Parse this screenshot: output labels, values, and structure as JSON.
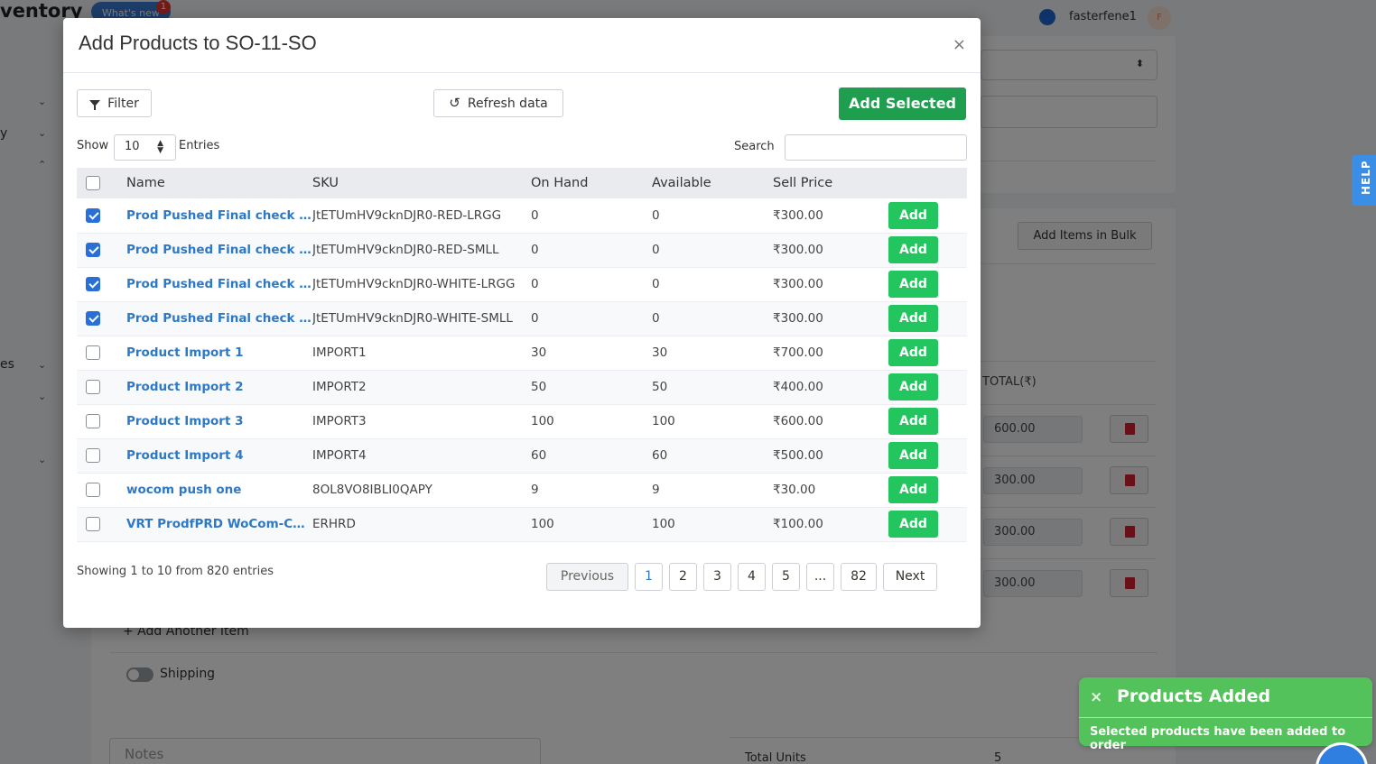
{
  "background": {
    "brand": "ventory",
    "whats_new": "What's new",
    "whats_new_badge": "1",
    "user_name": "fasterfene1",
    "avatar_initial": "F",
    "sidebar_fragments": [
      "y",
      "es"
    ],
    "add_items_bulk": "Add Items in Bulk",
    "total_header": "TOTAL(₹)",
    "amounts": [
      "600.00",
      "300.00",
      "300.00",
      "300.00"
    ],
    "add_another_item": "+ Add Another Item",
    "shipping_label": "Shipping",
    "notes_placeholder": "Notes",
    "total_units_label": "Total Units",
    "total_units_value": "5",
    "help": "HELP"
  },
  "modal": {
    "title": "Add Products to SO-11-SO",
    "close": "×",
    "filter_label": "Filter",
    "refresh_label": "Refresh data",
    "add_selected_label": "Add Selected",
    "show_label": "Show",
    "show_value": "10",
    "entries_label": "Entries",
    "search_label": "Search",
    "search_value": ""
  },
  "table": {
    "headers": {
      "name": "Name",
      "sku": "SKU",
      "on_hand": "On Hand",
      "available": "Available",
      "sell_price": "Sell Price"
    },
    "add_label": "Add",
    "rows": [
      {
        "checked": true,
        "name": "Prod Pushed Final check RED-LRGG",
        "sku": "JtETUmHV9cknDJR0-RED-LRGG",
        "on_hand": "0",
        "available": "0",
        "sell_price": "₹300.00"
      },
      {
        "checked": true,
        "name": "Prod Pushed Final check RED-SMLL",
        "sku": "JtETUmHV9cknDJR0-RED-SMLL",
        "on_hand": "0",
        "available": "0",
        "sell_price": "₹300.00"
      },
      {
        "checked": true,
        "name": "Prod Pushed Final check WHITE-LRGG",
        "sku": "JtETUmHV9cknDJR0-WHITE-LRGG",
        "on_hand": "0",
        "available": "0",
        "sell_price": "₹300.00"
      },
      {
        "checked": true,
        "name": "Prod Pushed Final check WHITE-SMLL",
        "sku": "JtETUmHV9cknDJR0-WHITE-SMLL",
        "on_hand": "0",
        "available": "0",
        "sell_price": "₹300.00"
      },
      {
        "checked": false,
        "name": "Product Import 1",
        "sku": "IMPORT1",
        "on_hand": "30",
        "available": "30",
        "sell_price": "₹700.00"
      },
      {
        "checked": false,
        "name": "Product Import 2",
        "sku": "IMPORT2",
        "on_hand": "50",
        "available": "50",
        "sell_price": "₹400.00"
      },
      {
        "checked": false,
        "name": "Product Import 3",
        "sku": "IMPORT3",
        "on_hand": "100",
        "available": "100",
        "sell_price": "₹600.00"
      },
      {
        "checked": false,
        "name": "Product Import 4",
        "sku": "IMPORT4",
        "on_hand": "60",
        "available": "60",
        "sell_price": "₹500.00"
      },
      {
        "checked": false,
        "name": "wocom push one",
        "sku": "8OL8VO8IBLI0QAPY",
        "on_hand": "9",
        "available": "9",
        "sell_price": "₹30.00"
      },
      {
        "checked": false,
        "name": "VRT ProdfPRD WoCom-COLOR-ERHRD",
        "sku": "ERHRD",
        "on_hand": "100",
        "available": "100",
        "sell_price": "₹100.00"
      }
    ]
  },
  "pagination": {
    "showing_text": "Showing 1 to 10 from 820 entries",
    "previous": "Previous",
    "pages": [
      "1",
      "2",
      "3",
      "4",
      "5",
      "...",
      "82"
    ],
    "active_page": "1",
    "next": "Next"
  },
  "toast": {
    "title": "Products Added",
    "message": "Selected products have been added to order",
    "close": "×",
    "color": "#53c25b"
  },
  "colors": {
    "add_selected": "#1f9e4f",
    "add_row": "#22c55e",
    "link": "#2f78c4",
    "checkbox": "#2a6fd8"
  }
}
